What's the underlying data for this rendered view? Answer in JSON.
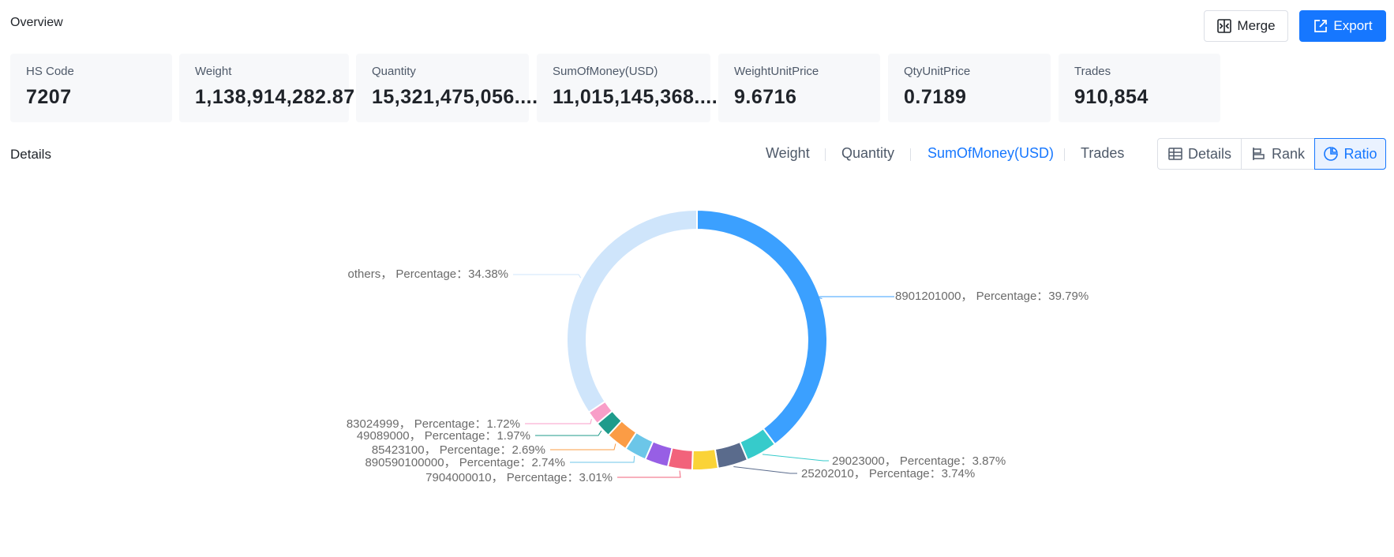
{
  "header": {
    "title": "Overview",
    "merge_label": "Merge",
    "export_label": "Export"
  },
  "stats": [
    {
      "label": "HS Code",
      "value": "7207"
    },
    {
      "label": "Weight",
      "value": "1,138,914,282.87"
    },
    {
      "label": "Quantity",
      "value": "15,321,475,056...."
    },
    {
      "label": "SumOfMoney(USD)",
      "value": "11,015,145,368...."
    },
    {
      "label": "WeightUnitPrice",
      "value": "9.6716"
    },
    {
      "label": "QtyUnitPrice",
      "value": "0.7189"
    },
    {
      "label": "Trades",
      "value": "910,854"
    }
  ],
  "details": {
    "title": "Details",
    "metric_tabs": [
      {
        "label": "Weight",
        "active": false
      },
      {
        "label": "Quantity",
        "active": false
      },
      {
        "label": "SumOfMoney(USD)",
        "active": true
      },
      {
        "label": "Trades",
        "active": false
      }
    ],
    "views": [
      {
        "label": "Details",
        "icon": "table-icon",
        "active": false
      },
      {
        "label": "Rank",
        "icon": "bar-rank-icon",
        "active": false
      },
      {
        "label": "Ratio",
        "icon": "pie-icon",
        "active": true
      }
    ]
  },
  "colors": {
    "accent": "#1677ff"
  },
  "chart_data": {
    "type": "pie",
    "donut": true,
    "slices": [
      {
        "name": "8901201000",
        "value": 39.79,
        "label": "8901201000，  Percentage：39.79%",
        "color": "#3ba0ff",
        "side": "right"
      },
      {
        "name": "29023000",
        "value": 3.87,
        "label": "29023000，  Percentage：3.87%",
        "color": "#36cbcb",
        "side": "right"
      },
      {
        "name": "25202010",
        "value": 3.74,
        "label": "25202010，  Percentage：3.74%",
        "color": "#5a6b8c",
        "side": "right"
      },
      {
        "name": "unlabeled",
        "value": 3.2,
        "label": "",
        "color": "#fad337",
        "side": "none"
      },
      {
        "name": "7904000010",
        "value": 3.01,
        "label": "7904000010，  Percentage：3.01%",
        "color": "#f2637b",
        "side": "left"
      },
      {
        "name": "unlabeled",
        "value": 2.9,
        "label": "",
        "color": "#975fe5",
        "side": "none"
      },
      {
        "name": "890590100000",
        "value": 2.74,
        "label": "890590100000，  Percentage：2.74%",
        "color": "#6cc6e8",
        "side": "left"
      },
      {
        "name": "85423100",
        "value": 2.69,
        "label": "85423100，  Percentage：2.69%",
        "color": "#fb9c45",
        "side": "left"
      },
      {
        "name": "49089000",
        "value": 1.97,
        "label": "49089000，  Percentage：1.97%",
        "color": "#1f9b8b",
        "side": "left"
      },
      {
        "name": "83024999",
        "value": 1.72,
        "label": "83024999，  Percentage：1.72%",
        "color": "#f89ec8",
        "side": "left"
      },
      {
        "name": "others",
        "value": 34.38,
        "label": "others，  Percentage：34.38%",
        "color": "#cfe5fb",
        "side": "left"
      }
    ]
  }
}
